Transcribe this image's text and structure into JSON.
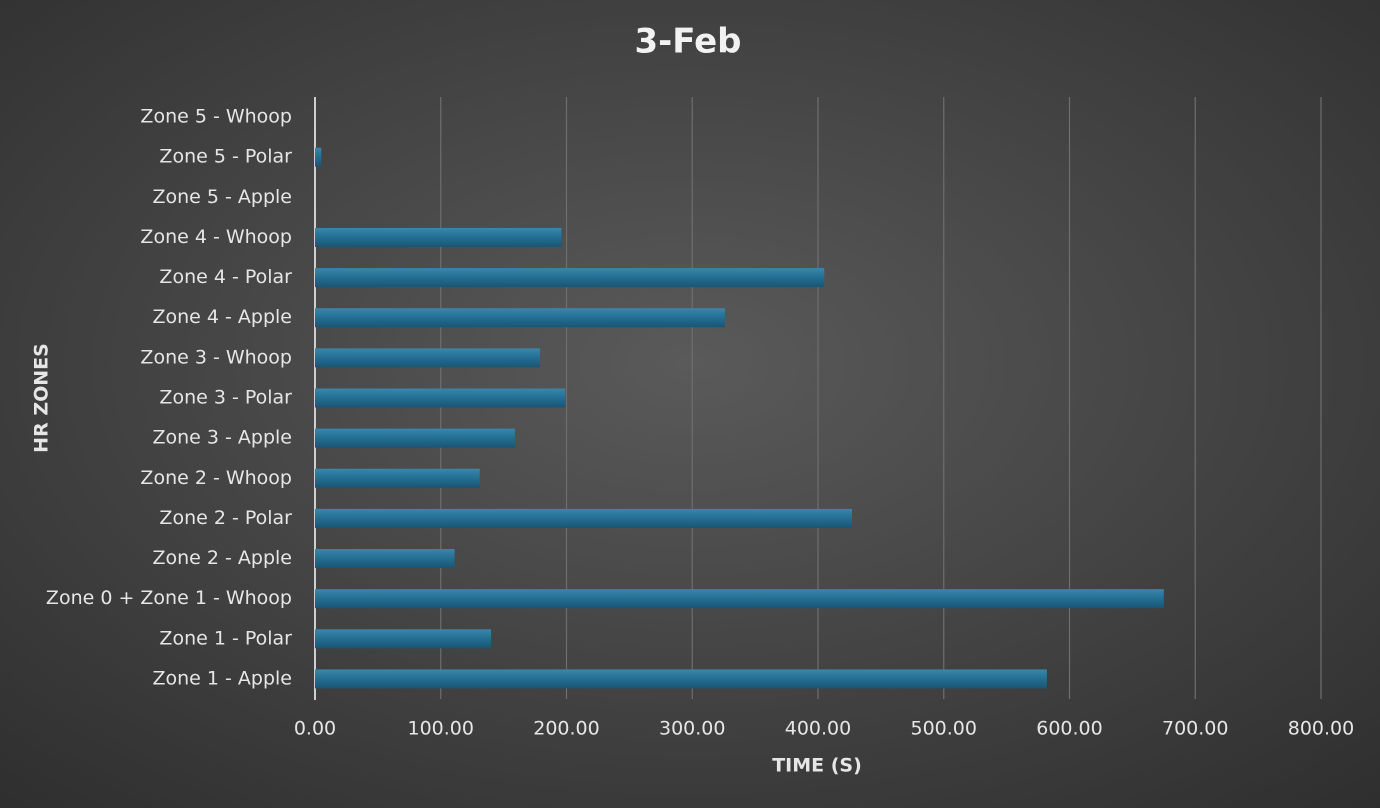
{
  "chart_data": {
    "type": "bar",
    "orientation": "horizontal",
    "title": "3-Feb",
    "x_label": "TIME (S)",
    "y_label": "HR ZONES",
    "categories": [
      "Zone 1 - Apple",
      "Zone 1 - Polar",
      "Zone 0 + Zone 1 - Whoop",
      "Zone 2 - Apple",
      "Zone 2 - Polar",
      "Zone 2 - Whoop",
      "Zone 3 - Apple",
      "Zone 3 - Polar",
      "Zone 3 - Whoop",
      "Zone 4 - Apple",
      "Zone 4 - Polar",
      "Zone 4 - Whoop",
      "Zone 5 - Apple",
      "Zone 5 - Polar",
      "Zone 5 - Whoop"
    ],
    "values": [
      582,
      140,
      675,
      111,
      427,
      131,
      159,
      199,
      179,
      326,
      405,
      196,
      0,
      5,
      0
    ],
    "color": "#236e92",
    "xlim": [
      0,
      800
    ],
    "xticks": [
      {
        "value": 0,
        "label": "0.00"
      },
      {
        "value": 100,
        "label": "100.00"
      },
      {
        "value": 200,
        "label": "200.00"
      },
      {
        "value": 300,
        "label": "300.00"
      },
      {
        "value": 400,
        "label": "400.00"
      },
      {
        "value": 500,
        "label": "500.00"
      },
      {
        "value": 600,
        "label": "600.00"
      },
      {
        "value": 700,
        "label": "700.00"
      },
      {
        "value": 800,
        "label": "800.00"
      }
    ],
    "grid": true
  }
}
